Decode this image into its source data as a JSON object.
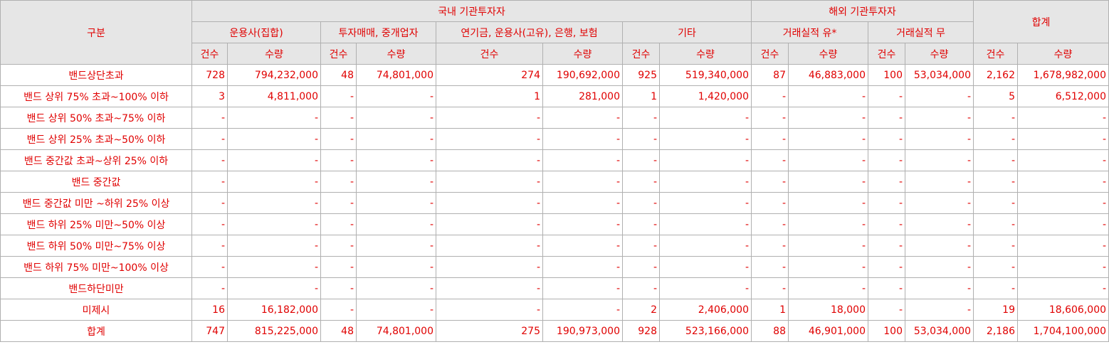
{
  "header": {
    "category": "구분",
    "domestic": "국내 기관투자자",
    "foreign": "해외 기관투자자",
    "total": "합계",
    "groups": [
      "운용사(집합)",
      "투자매매, 중개업자",
      "연기금, 운용사(고유), 은행, 보험",
      "기타",
      "거래실적 유*",
      "거래실적 무"
    ],
    "count": "건수",
    "quantity": "수량"
  },
  "rows": [
    {
      "label": "밴드상단초과",
      "cells": [
        "728",
        "794,232,000",
        "48",
        "74,801,000",
        "274",
        "190,692,000",
        "925",
        "519,340,000",
        "87",
        "46,883,000",
        "100",
        "53,034,000",
        "2,162",
        "1,678,982,000"
      ]
    },
    {
      "label": "밴드 상위 75% 초과~100% 이하",
      "cells": [
        "3",
        "4,811,000",
        "-",
        "-",
        "1",
        "281,000",
        "1",
        "1,420,000",
        "-",
        "-",
        "-",
        "-",
        "5",
        "6,512,000"
      ]
    },
    {
      "label": "밴드 상위 50% 초과~75% 이하",
      "cells": [
        "-",
        "-",
        "-",
        "-",
        "-",
        "-",
        "-",
        "-",
        "-",
        "-",
        "-",
        "-",
        "-",
        "-"
      ]
    },
    {
      "label": "밴드 상위 25% 초과~50% 이하",
      "cells": [
        "-",
        "-",
        "-",
        "-",
        "-",
        "-",
        "-",
        "-",
        "-",
        "-",
        "-",
        "-",
        "-",
        "-"
      ]
    },
    {
      "label": "밴드 중간값 초과~상위 25% 이하",
      "cells": [
        "-",
        "-",
        "-",
        "-",
        "-",
        "-",
        "-",
        "-",
        "-",
        "-",
        "-",
        "-",
        "-",
        "-"
      ]
    },
    {
      "label": "밴드 중간값",
      "cells": [
        "-",
        "-",
        "-",
        "-",
        "-",
        "-",
        "-",
        "-",
        "-",
        "-",
        "-",
        "-",
        "-",
        "-"
      ]
    },
    {
      "label": "밴드 중간값 미만 ~하위 25% 이상",
      "cells": [
        "-",
        "-",
        "-",
        "-",
        "-",
        "-",
        "-",
        "-",
        "-",
        "-",
        "-",
        "-",
        "-",
        "-"
      ]
    },
    {
      "label": "밴드 하위 25% 미만~50% 이상",
      "cells": [
        "-",
        "-",
        "-",
        "-",
        "-",
        "-",
        "-",
        "-",
        "-",
        "-",
        "-",
        "-",
        "-",
        "-"
      ]
    },
    {
      "label": "밴드 하위 50% 미만~75% 이상",
      "cells": [
        "-",
        "-",
        "-",
        "-",
        "-",
        "-",
        "-",
        "-",
        "-",
        "-",
        "-",
        "-",
        "-",
        "-"
      ]
    },
    {
      "label": "밴드 하위 75% 미만~100% 이상",
      "cells": [
        "-",
        "-",
        "-",
        "-",
        "-",
        "-",
        "-",
        "-",
        "-",
        "-",
        "-",
        "-",
        "-",
        "-"
      ]
    },
    {
      "label": "밴드하단미만",
      "cells": [
        "-",
        "-",
        "-",
        "-",
        "-",
        "-",
        "-",
        "-",
        "-",
        "-",
        "-",
        "-",
        "-",
        "-"
      ]
    },
    {
      "label": "미제시",
      "cells": [
        "16",
        "16,182,000",
        "-",
        "-",
        "-",
        "-",
        "2",
        "2,406,000",
        "1",
        "18,000",
        "-",
        "-",
        "19",
        "18,606,000"
      ]
    },
    {
      "label": "합계",
      "cells": [
        "747",
        "815,225,000",
        "48",
        "74,801,000",
        "275",
        "190,973,000",
        "928",
        "523,166,000",
        "88",
        "46,901,000",
        "100",
        "53,034,000",
        "2,186",
        "1,704,100,000"
      ]
    }
  ]
}
